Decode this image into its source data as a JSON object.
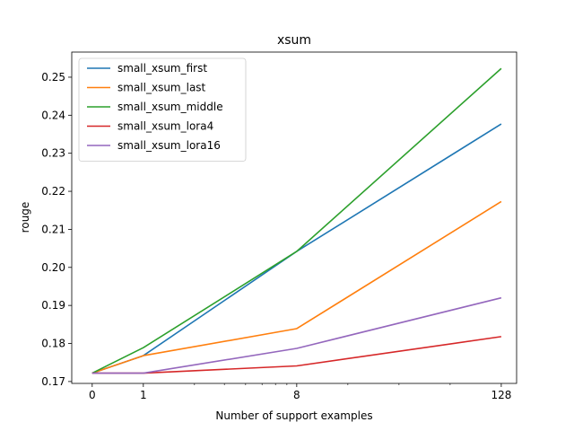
{
  "chart_data": {
    "type": "line",
    "title": "xsum",
    "xlabel": "Number of support examples",
    "ylabel": "rouge",
    "x_ticks": [
      "0",
      "1",
      "8",
      "128"
    ],
    "y_ticks": [
      "0.17",
      "0.18",
      "0.19",
      "0.20",
      "0.21",
      "0.22",
      "0.23",
      "0.24",
      "0.25"
    ],
    "x": [
      0,
      1,
      8,
      128
    ],
    "ylim": [
      0.1695,
      0.2566
    ],
    "grid": false,
    "legend_position": "upper-left",
    "series": [
      {
        "name": "small_xsum_first",
        "color": "#1f77b4",
        "values": [
          0.1722,
          0.1768,
          0.2042,
          0.2377
        ]
      },
      {
        "name": "small_xsum_last",
        "color": "#ff7f0e",
        "values": [
          0.1722,
          0.1768,
          0.1839,
          0.2173
        ]
      },
      {
        "name": "small_xsum_middle",
        "color": "#2ca02c",
        "values": [
          0.1722,
          0.1789,
          0.2042,
          0.2523
        ]
      },
      {
        "name": "small_xsum_lora4",
        "color": "#d62728",
        "values": [
          0.1722,
          0.1722,
          0.1741,
          0.1818
        ]
      },
      {
        "name": "small_xsum_lora16",
        "color": "#9467bd",
        "values": [
          0.1722,
          0.1722,
          0.1787,
          0.192
        ]
      }
    ]
  }
}
